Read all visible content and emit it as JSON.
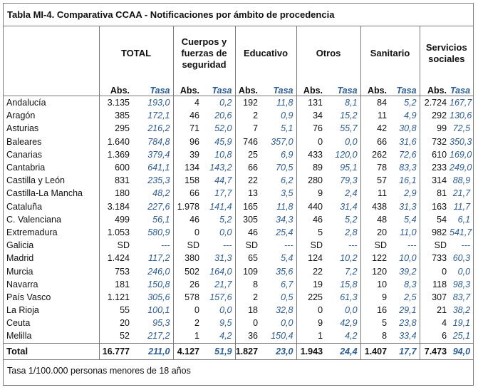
{
  "title": "Tabla MI-4. Comparativa CCAA - Notificaciones por ámbito de procedencia",
  "groups": {
    "total": "TOTAL",
    "cuerpos": "Cuerpos y fuerzas de seguridad",
    "educativo": "Educativo",
    "otros": "Otros",
    "sanitario": "Sanitario",
    "servicios": "Servicios sociales"
  },
  "sub": {
    "abs": "Abs.",
    "tasa": "Tasa"
  },
  "rows": [
    {
      "name": "Andalucía",
      "v": [
        "3.135",
        "193,0",
        "4",
        "0,2",
        "192",
        "11,8",
        "131",
        "8,1",
        "84",
        "5,2",
        "2.724",
        "167,7"
      ]
    },
    {
      "name": "Aragón",
      "v": [
        "385",
        "172,1",
        "46",
        "20,6",
        "2",
        "0,9",
        "34",
        "15,2",
        "11",
        "4,9",
        "292",
        "130,6"
      ]
    },
    {
      "name": "Asturias",
      "v": [
        "295",
        "216,2",
        "71",
        "52,0",
        "7",
        "5,1",
        "76",
        "55,7",
        "42",
        "30,8",
        "99",
        "72,5"
      ]
    },
    {
      "name": "Baleares",
      "v": [
        "1.640",
        "784,8",
        "96",
        "45,9",
        "746",
        "357,0",
        "0",
        "0,0",
        "66",
        "31,6",
        "732",
        "350,3"
      ]
    },
    {
      "name": "Canarias",
      "v": [
        "1.369",
        "379,4",
        "39",
        "10,8",
        "25",
        "6,9",
        "433",
        "120,0",
        "262",
        "72,6",
        "610",
        "169,0"
      ]
    },
    {
      "name": "Cantabria",
      "v": [
        "600",
        "641,1",
        "134",
        "143,2",
        "66",
        "70,5",
        "89",
        "95,1",
        "78",
        "83,3",
        "233",
        "249,0"
      ]
    },
    {
      "name": "Castilla y León",
      "v": [
        "831",
        "235,3",
        "158",
        "44,7",
        "22",
        "6,2",
        "280",
        "79,3",
        "57",
        "16,1",
        "314",
        "88,9"
      ]
    },
    {
      "name": "Castilla-La Mancha",
      "v": [
        "180",
        "48,2",
        "66",
        "17,7",
        "13",
        "3,5",
        "9",
        "2,4",
        "11",
        "2,9",
        "81",
        "21,7"
      ]
    },
    {
      "name": "Cataluña",
      "v": [
        "3.184",
        "227,6",
        "1.978",
        "141,4",
        "165",
        "11,8",
        "440",
        "31,4",
        "438",
        "31,3",
        "163",
        "11,7"
      ]
    },
    {
      "name": "C. Valenciana",
      "v": [
        "499",
        "56,1",
        "46",
        "5,2",
        "305",
        "34,3",
        "46",
        "5,2",
        "48",
        "5,4",
        "54",
        "6,1"
      ]
    },
    {
      "name": "Extremadura",
      "v": [
        "1.053",
        "580,9",
        "0",
        "0,0",
        "46",
        "25,4",
        "5",
        "2,8",
        "20",
        "11,0",
        "982",
        "541,7"
      ]
    },
    {
      "name": "Galicia",
      "v": [
        "SD",
        "---",
        "SD",
        "---",
        "SD",
        "---",
        "SD",
        "---",
        "SD",
        "---",
        "SD",
        "---"
      ]
    },
    {
      "name": "Madrid",
      "v": [
        "1.424",
        "117,2",
        "380",
        "31,3",
        "65",
        "5,4",
        "124",
        "10,2",
        "122",
        "10,0",
        "733",
        "60,3"
      ]
    },
    {
      "name": "Murcia",
      "v": [
        "753",
        "246,0",
        "502",
        "164,0",
        "109",
        "35,6",
        "22",
        "7,2",
        "120",
        "39,2",
        "0",
        "0,0"
      ]
    },
    {
      "name": "Navarra",
      "v": [
        "181",
        "150,8",
        "26",
        "21,7",
        "8",
        "6,7",
        "19",
        "15,8",
        "10",
        "8,3",
        "118",
        "98,3"
      ]
    },
    {
      "name": "País Vasco",
      "v": [
        "1.121",
        "305,6",
        "578",
        "157,6",
        "2",
        "0,5",
        "225",
        "61,3",
        "9",
        "2,5",
        "307",
        "83,7"
      ]
    },
    {
      "name": "La Rioja",
      "v": [
        "55",
        "100,1",
        "0",
        "0,0",
        "18",
        "32,8",
        "0",
        "0,0",
        "16",
        "29,1",
        "21",
        "38,2"
      ]
    },
    {
      "name": "Ceuta",
      "v": [
        "20",
        "95,3",
        "2",
        "9,5",
        "0",
        "0,0",
        "9",
        "42,9",
        "5",
        "23,8",
        "4",
        "19,1"
      ]
    },
    {
      "name": "Melilla",
      "v": [
        "52",
        "217,2",
        "1",
        "4,2",
        "36",
        "150,4",
        "1",
        "4,2",
        "8",
        "33,4",
        "6",
        "25,1"
      ]
    }
  ],
  "total": {
    "name": "Total",
    "v": [
      "16.777",
      "211,0",
      "4.127",
      "51,9",
      "1.827",
      "23,0",
      "1.943",
      "24,4",
      "1.407",
      "17,7",
      "7.473",
      "94,0"
    ]
  },
  "footnote": "Tasa 1/100.000 personas menores de 18 años"
}
